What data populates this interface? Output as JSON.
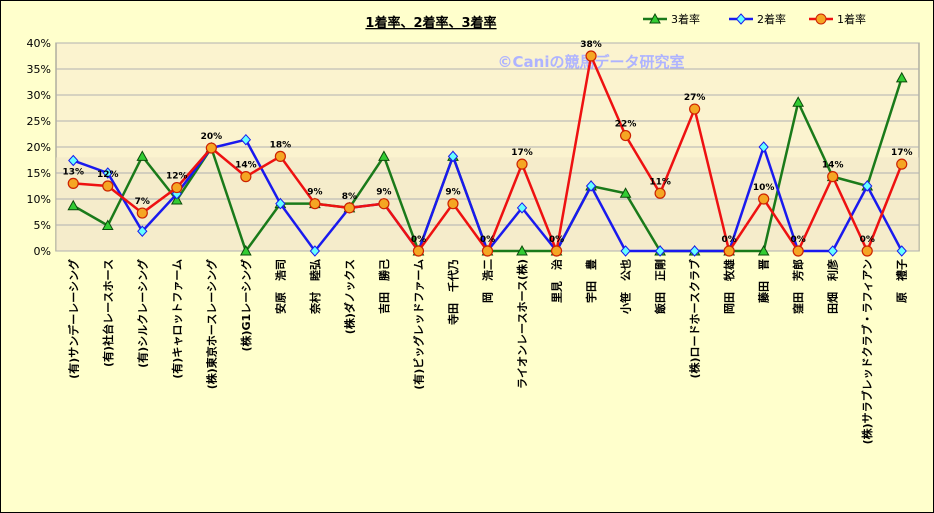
{
  "chart_data": {
    "type": "line",
    "title": "1着率、2着率、3着率",
    "watermark": "©Caniの競馬データ研究室",
    "ylim": [
      0,
      40
    ],
    "yticks": [
      "0%",
      "5%",
      "10%",
      "15%",
      "20%",
      "25%",
      "30%",
      "35%",
      "40%"
    ],
    "grid": true,
    "legend_position": "top-right",
    "categories": [
      "(有)サンデーレーシング",
      "(有)社台レースホース",
      "(有)シルクレーシング",
      "(有)キャロットファーム",
      "(株)東京ホースレーシング",
      "(株)G1レーシング",
      "安原　浩司",
      "奈村　睦弘",
      "(株)ダノックス",
      "吉田　勝己",
      "(有)ビッグレッドファーム",
      "寺田　千代乃",
      "岡　浩二",
      "ライオンレースホース(株)",
      "里見　治",
      "宇田　豊",
      "小笹　公也",
      "飯田　正剛",
      "(株)ロードホースクラブ",
      "岡田　牧雄",
      "藤田　晋",
      "窪田　芳郎",
      "田畑　利彦",
      "(株)サラブレッドクラブ・ラフィアン",
      "原　禮子"
    ],
    "series": [
      {
        "name": "3着率",
        "color": "#1a7a1a",
        "marker": "triangle",
        "values": [
          8.7,
          4.9,
          18.2,
          9.8,
          19.8,
          0,
          9.1,
          9.1,
          8.3,
          18.2,
          0,
          18.2,
          0,
          0,
          0,
          12.5,
          11.1,
          0,
          0,
          0,
          0,
          28.6,
          14.3,
          12.5,
          33.3
        ]
      },
      {
        "name": "2着率",
        "color": "#1a1aee",
        "marker": "diamond",
        "values": [
          17.4,
          15.0,
          3.8,
          11.0,
          19.8,
          21.4,
          9.1,
          0,
          8.3,
          9.1,
          0,
          18.2,
          0,
          8.3,
          0,
          12.5,
          0,
          0,
          0,
          0,
          20.0,
          0,
          0,
          12.5,
          0
        ]
      },
      {
        "name": "1着率",
        "color": "#ee1111",
        "marker": "circle",
        "values": [
          13.0,
          12.5,
          7.3,
          12.2,
          19.8,
          14.3,
          18.2,
          9.1,
          8.3,
          9.1,
          0,
          9.1,
          0,
          16.7,
          0,
          37.5,
          22.2,
          11.1,
          27.3,
          0,
          10.0,
          0,
          14.3,
          0,
          16.7
        ]
      }
    ],
    "data_labels": [
      "13%",
      "12%",
      "7%",
      "12%",
      "20%",
      "14%",
      "18%",
      "9%",
      "8%",
      "9%",
      "0%",
      "9%",
      "0%",
      "17%",
      "0%",
      "38%",
      "22%",
      "11%",
      "27%",
      "0%",
      "10%",
      "0%",
      "14%",
      "0%",
      "17%"
    ]
  }
}
